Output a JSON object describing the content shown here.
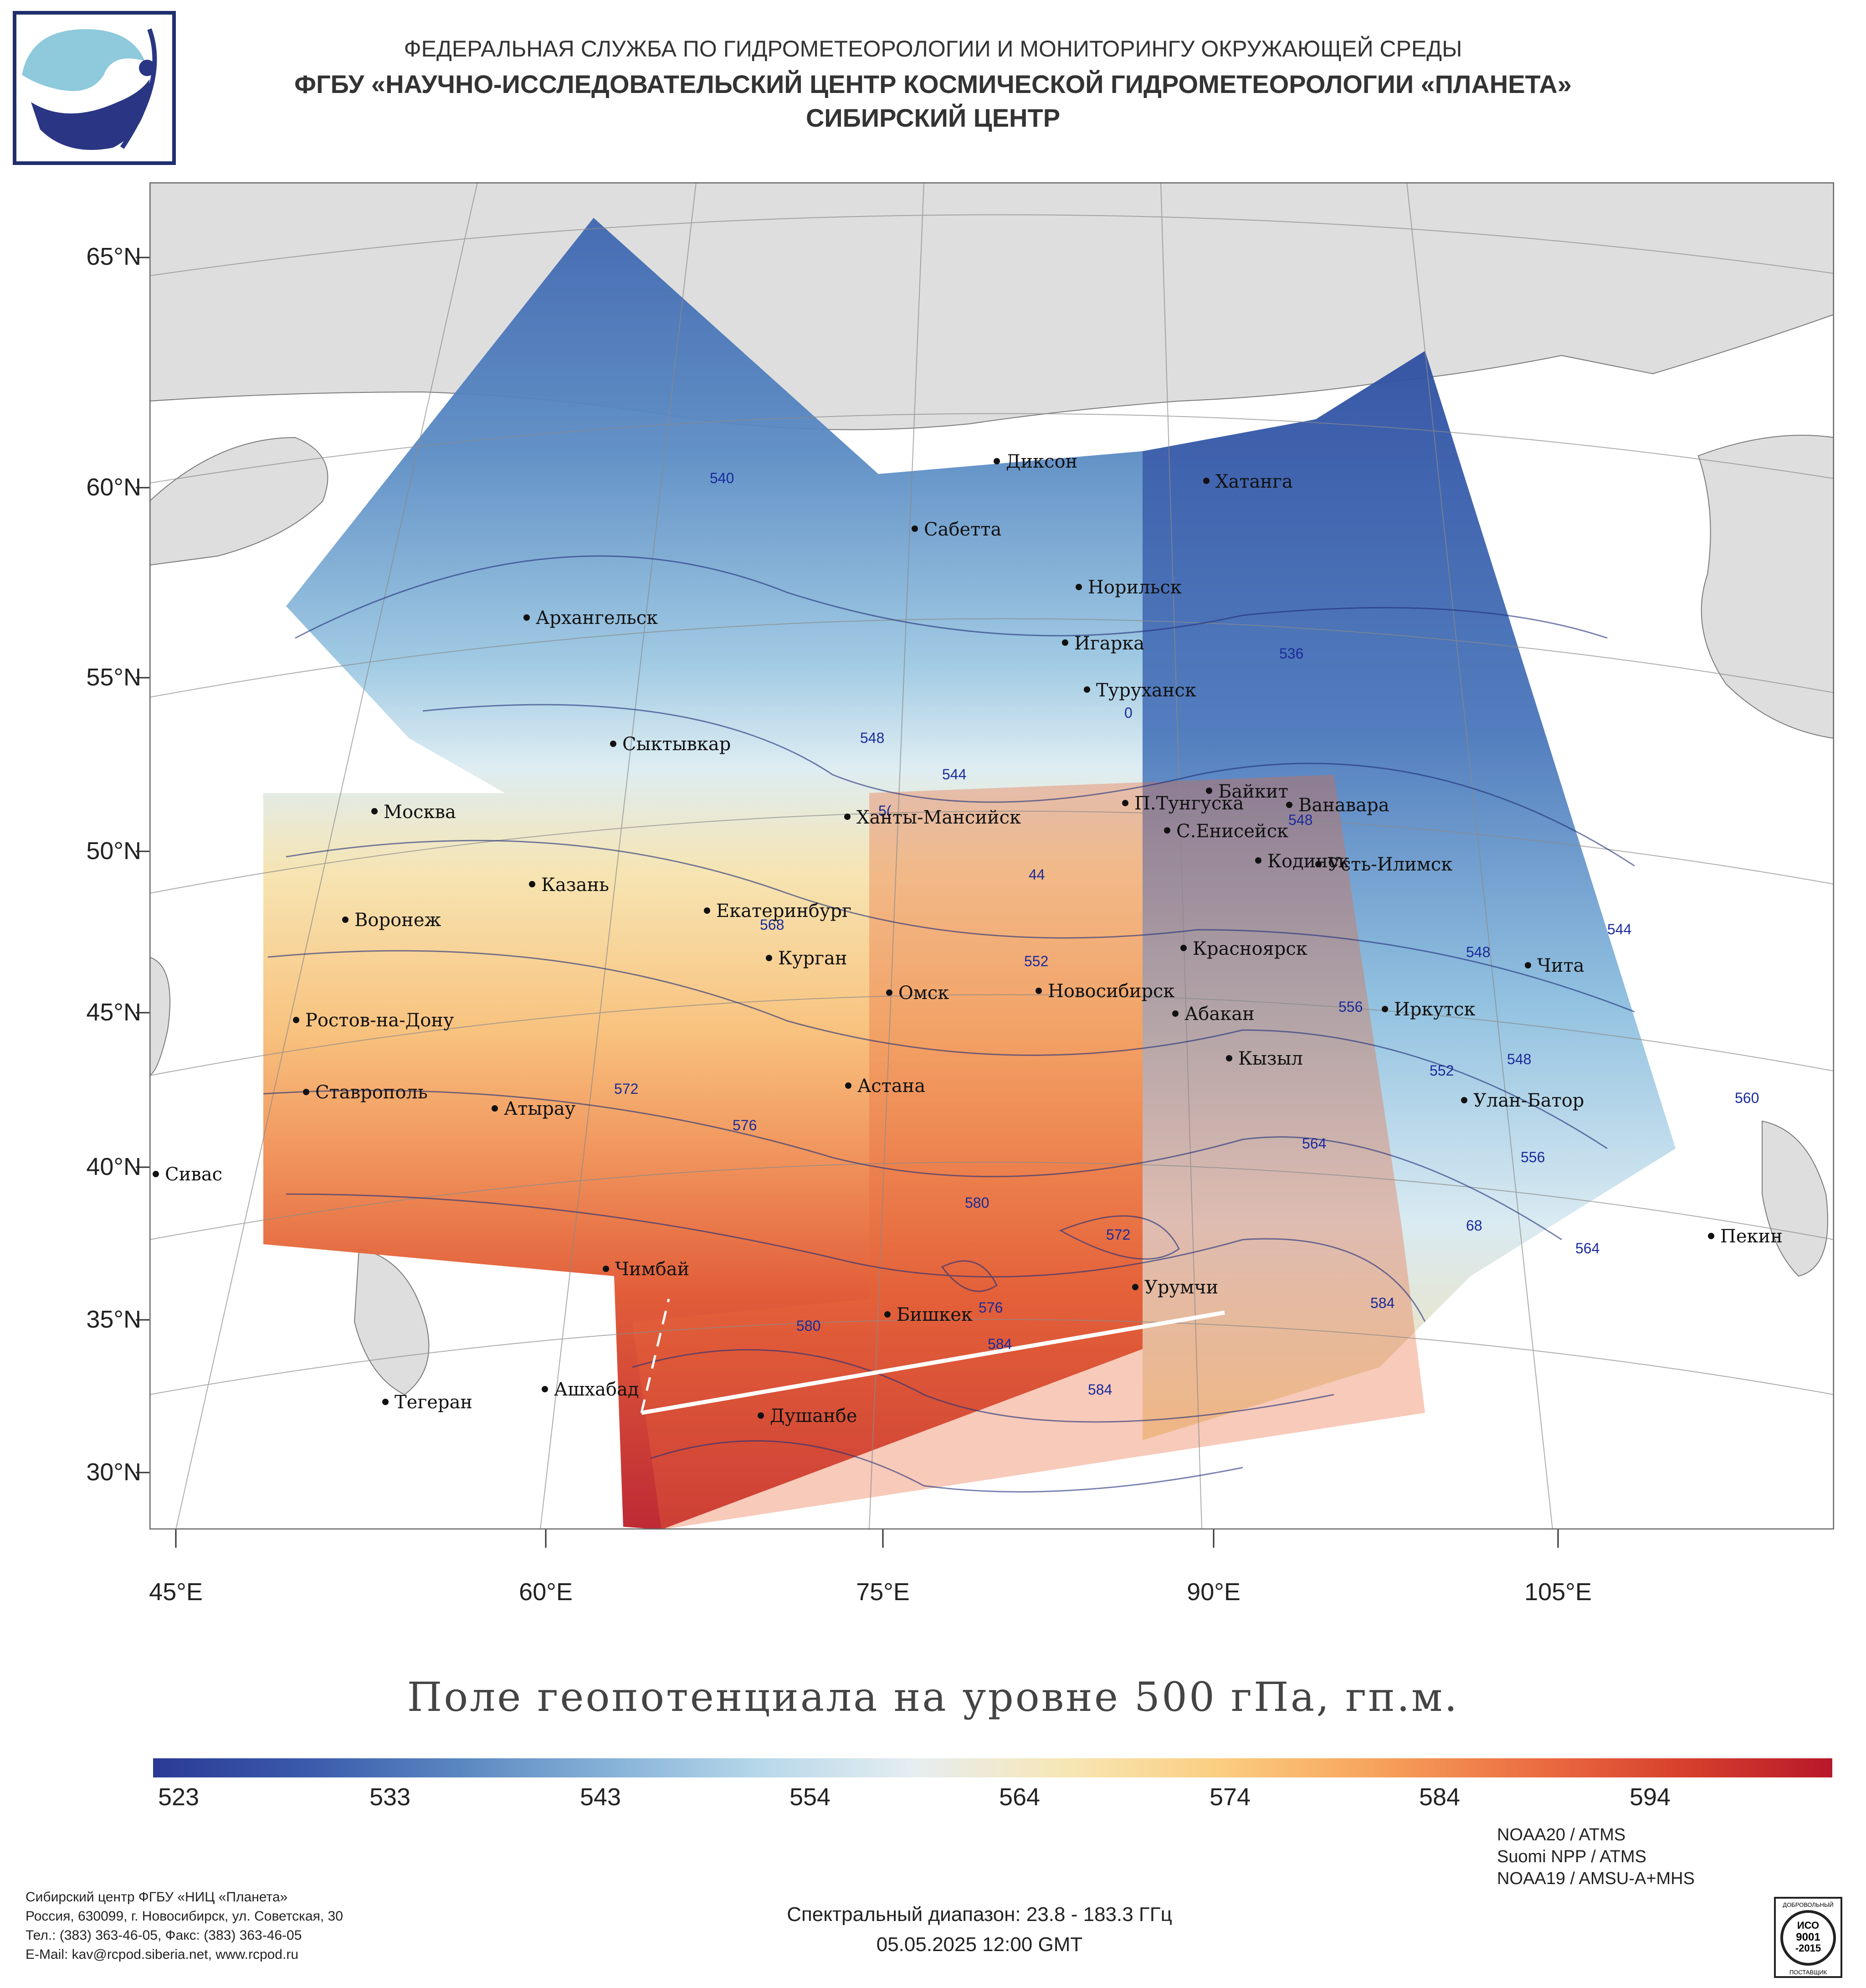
{
  "header": {
    "line1": "ФЕДЕРАЛЬНАЯ СЛУЖБА ПО ГИДРОМЕТЕОРОЛОГИИ И МОНИТОРИНГУ ОКРУЖАЮЩЕЙ СРЕДЫ",
    "line2": "ФГБУ «НАУЧНО-ИССЛЕДОВАТЕЛЬСКИЙ ЦЕНТР КОСМИЧЕСКОЙ ГИДРОМЕТЕОРОЛОГИИ «ПЛАНЕТА»",
    "line3": "СИБИРСКИЙ ЦЕНТР"
  },
  "map": {
    "lat_labels": [
      "65°N",
      "60°N",
      "55°N",
      "50°N",
      "45°N",
      "40°N",
      "35°N",
      "30°N"
    ],
    "lon_labels": [
      "45°E",
      "60°E",
      "75°E",
      "90°E",
      "105°E"
    ],
    "cities": [
      "Диксон",
      "Хатанга",
      "Сабетта",
      "Норильск",
      "Архангельск",
      "Игарка",
      "Туруханск",
      "Сыктывкар",
      "Байкит",
      "Москва",
      "П.Тунгуска",
      "Ванавара",
      "Ханты-Мансийск",
      "С.Енисейск",
      "Кодинск",
      "Усть-Илимск",
      "Казань",
      "Екатеринбург",
      "Воронеж",
      "Красноярск",
      "Курган",
      "Чита",
      "Омск",
      "Новосибирск",
      "Иркутск",
      "Абакан",
      "Ростов-на-Дону",
      "Кызыл",
      "Ставрополь",
      "Астана",
      "Улан-Батор",
      "Атырау",
      "Сивас",
      "Пекин",
      "Чимбай",
      "Урумчи",
      "Бишкек",
      "Ашхабад",
      "Тегеран",
      "Душанбе"
    ],
    "contour_labels": [
      "540",
      "536",
      "548",
      "544",
      "0",
      "5(",
      "44",
      "548",
      "568",
      "552",
      "556",
      "548",
      "544",
      "572",
      "576",
      "564",
      "580",
      "572",
      "68",
      "564",
      "552",
      "548",
      "556",
      "560",
      "584",
      "576",
      "580",
      "584",
      "584"
    ]
  },
  "title": "Поле геопотенциала на уровне 500 гПа, гп.м.",
  "colorbar": {
    "ticks": [
      "523",
      "533",
      "543",
      "554",
      "564",
      "574",
      "584",
      "594"
    ],
    "colors": [
      "#2b3a96",
      "#3a5aab",
      "#5a86c0",
      "#86b2d8",
      "#b8d8ea",
      "#e6eef0",
      "#f7e6b4",
      "#fbcd80",
      "#f7a35c",
      "#ec7043",
      "#d8412d",
      "#b8182a"
    ]
  },
  "footer": {
    "address": [
      "Сибирский центр ФГБУ «НИЦ «Планета»",
      "Россия, 630099, г. Новосибирск, ул. Советская, 30",
      "Тел.: (383) 363-46-05, Факс: (383) 363-46-05",
      "E-Mail: kav@rcpod.siberia.net, www.rcpod.ru"
    ],
    "spectral": "Спектральный диапазон: 23.8 - 183.3 ГГц",
    "datetime": "05.05.2025 12:00 GMT",
    "satellites": [
      "NOAA20 / ATMS",
      "Suomi NPP / ATMS",
      "NOAA19 / AMSU-A+MHS"
    ],
    "iso_badge": [
      "ДОБРОВОЛЬНЫЙ",
      "ИСО",
      "9001",
      "-2015",
      "ПОСТАВЩИК"
    ]
  }
}
